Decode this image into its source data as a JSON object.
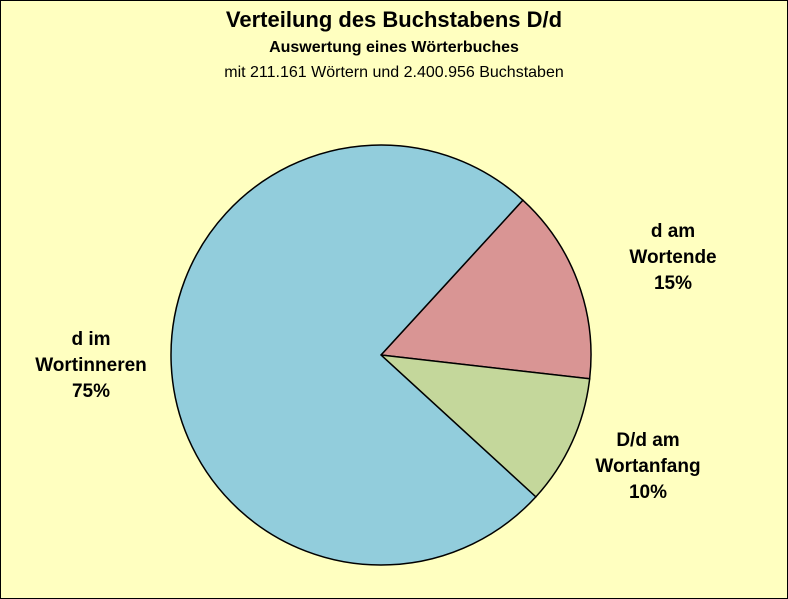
{
  "chart_data": {
    "type": "pie",
    "title": "Verteilung des Buchstabens D/d",
    "subtitle": "Auswertung eines Wörterbuches",
    "caption": "mit 211.161 Wörtern und 2.400.956 Buchstaben",
    "slices": [
      {
        "key": "end",
        "label_lines": [
          "d am",
          "Wortende"
        ],
        "value_label": "15%",
        "value": 15,
        "color": "#d99594"
      },
      {
        "key": "start",
        "label_lines": [
          "D/d am",
          "Wortanfang"
        ],
        "value_label": "10%",
        "value": 10,
        "color": "#c4d79b"
      },
      {
        "key": "middle",
        "label_lines": [
          "d im",
          "Wortinneren"
        ],
        "value_label": "75%",
        "value": 75,
        "color": "#92cddc"
      }
    ]
  }
}
